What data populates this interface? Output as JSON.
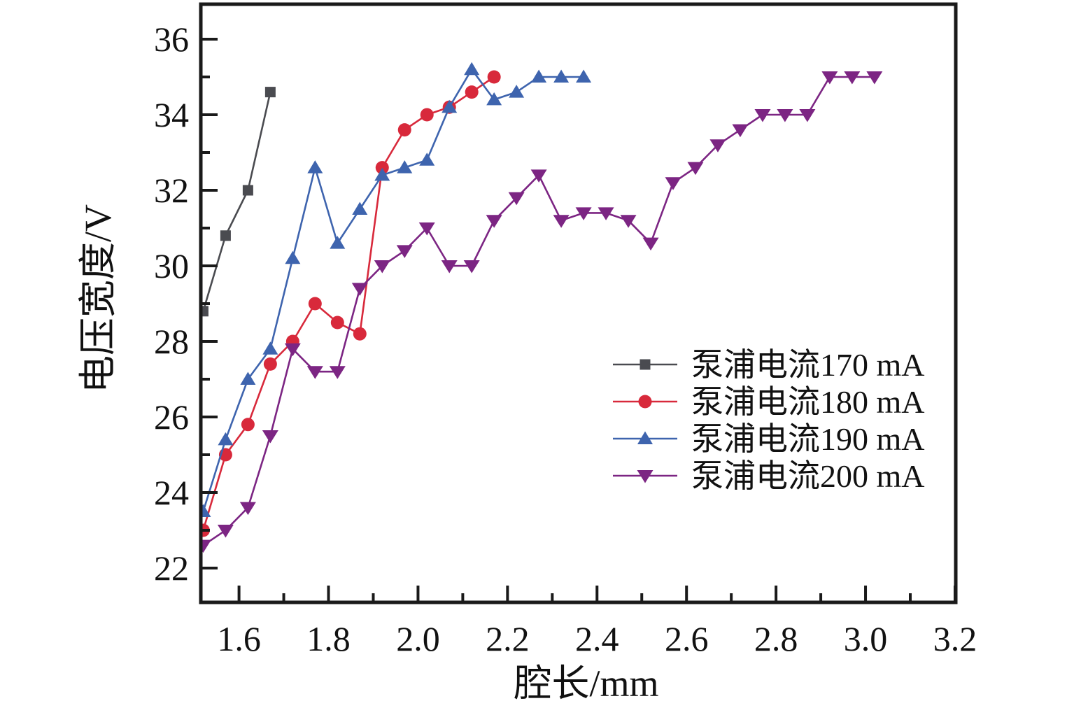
{
  "figure": {
    "background": "#ffffff",
    "frame_color": "#1a1a1a"
  },
  "chart_data": {
    "type": "line",
    "title": "",
    "xlabel": "腔长/mm",
    "ylabel": "电压宽度/V",
    "xlim": [
      1.515,
      3.202
    ],
    "ylim": [
      21.1,
      36.93
    ],
    "grid": false,
    "legend_position": "center-right",
    "x_major_ticks": [
      1.6,
      1.8,
      2.0,
      2.2,
      2.4,
      2.6,
      2.8,
      3.0,
      3.2
    ],
    "x_major_labels": [
      "1.6",
      "1.8",
      "2.0",
      "2.2",
      "2.4",
      "2.6",
      "2.8",
      "3.0",
      "3.2"
    ],
    "x_minor_ticks": [
      1.7,
      1.9,
      2.1,
      2.3,
      2.5,
      2.7,
      2.9,
      3.1
    ],
    "y_major_ticks": [
      22,
      24,
      26,
      28,
      30,
      32,
      34,
      36
    ],
    "y_major_labels": [
      "22",
      "24",
      "26",
      "28",
      "30",
      "32",
      "34",
      "36"
    ],
    "y_minor_ticks": [
      23,
      25,
      27,
      29,
      31,
      33,
      35
    ],
    "series": [
      {
        "name": "泵浦电流170 mA",
        "color": "#4a4b50",
        "marker": "square",
        "x": [
          1.52,
          1.57,
          1.62,
          1.67
        ],
        "y": [
          28.8,
          30.8,
          32.0,
          34.6
        ]
      },
      {
        "name": "泵浦电流180 mA",
        "color": "#d8293b",
        "marker": "circle",
        "x": [
          1.52,
          1.57,
          1.62,
          1.67,
          1.72,
          1.77,
          1.82,
          1.87,
          1.92,
          1.97,
          2.02,
          2.07,
          2.12,
          2.17
        ],
        "y": [
          23.0,
          25.0,
          25.8,
          27.4,
          28.0,
          29.0,
          28.5,
          28.2,
          32.6,
          33.6,
          34.0,
          34.2,
          34.6,
          35.0
        ]
      },
      {
        "name": "泵浦电流190 mA",
        "color": "#3e64ae",
        "marker": "triangle-up",
        "x": [
          1.52,
          1.57,
          1.62,
          1.67,
          1.72,
          1.77,
          1.82,
          1.87,
          1.92,
          1.97,
          2.02,
          2.07,
          2.12,
          2.17,
          2.22,
          2.27,
          2.32,
          2.37
        ],
        "y": [
          23.5,
          25.4,
          27.0,
          27.8,
          30.2,
          32.6,
          30.6,
          31.5,
          32.4,
          32.6,
          32.8,
          34.2,
          35.2,
          34.4,
          34.6,
          35.0,
          35.0,
          35.0
        ]
      },
      {
        "name": "泵浦电流200 mA",
        "color": "#7c2583",
        "marker": "triangle-down",
        "x": [
          1.52,
          1.57,
          1.62,
          1.67,
          1.72,
          1.77,
          1.82,
          1.87,
          1.92,
          1.97,
          2.02,
          2.07,
          2.12,
          2.17,
          2.22,
          2.27,
          2.32,
          2.37,
          2.42,
          2.47,
          2.52,
          2.57,
          2.62,
          2.67,
          2.72,
          2.77,
          2.82,
          2.87,
          2.92,
          2.97,
          3.02
        ],
        "y": [
          22.6,
          23.0,
          23.6,
          25.5,
          27.8,
          27.2,
          27.2,
          29.4,
          30.0,
          30.4,
          31.0,
          30.0,
          30.0,
          31.2,
          31.8,
          32.4,
          31.2,
          31.4,
          31.4,
          31.2,
          30.6,
          32.2,
          32.6,
          33.2,
          33.6,
          34.0,
          34.0,
          34.0,
          35.0,
          35.0,
          35.0
        ]
      }
    ],
    "legend": [
      {
        "label": "泵浦电流170 mA"
      },
      {
        "label": "泵浦电流180 mA"
      },
      {
        "label": "泵浦电流190 mA"
      },
      {
        "label": "泵浦电流200 mA"
      }
    ]
  }
}
